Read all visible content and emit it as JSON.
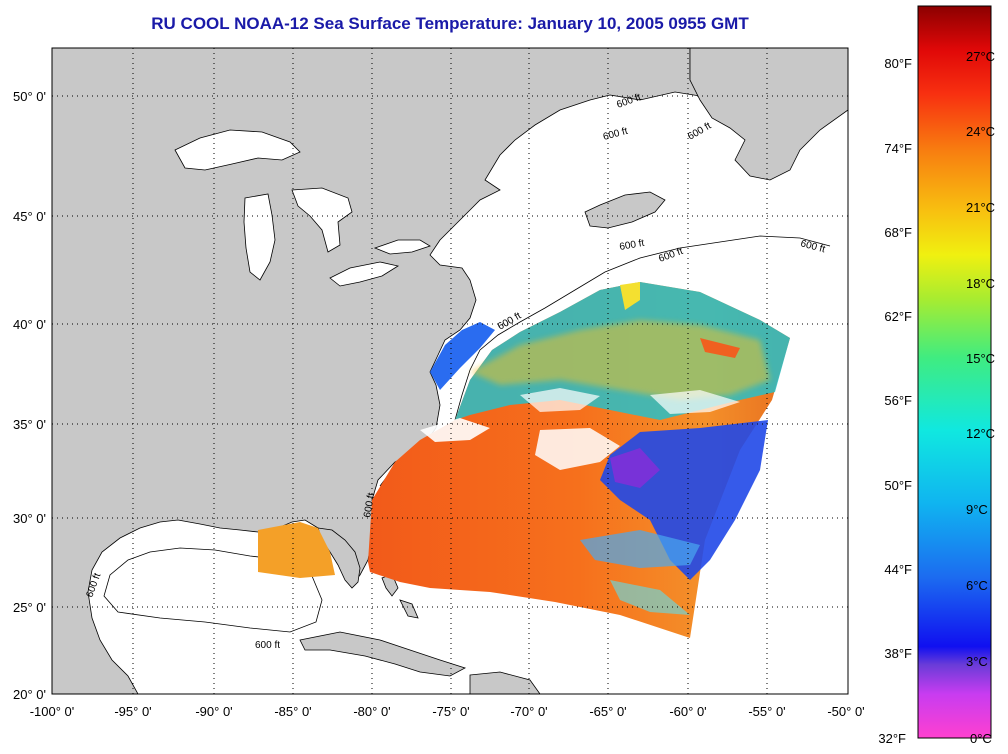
{
  "title": "RU COOL  NOAA-12  Sea Surface Temperature:  January 10, 2005 0955 GMT",
  "map": {
    "lon_ticks": [
      "-100° 0'",
      "-95° 0'",
      "-90° 0'",
      "-85° 0'",
      "-80° 0'",
      "-75° 0'",
      "-70° 0'",
      "-65° 0'",
      "-60° 0'",
      "-55° 0'",
      "-50° 0'"
    ],
    "lat_ticks": [
      "50° 0'",
      "45° 0'",
      "40° 0'",
      "35° 0'",
      "30° 0'",
      "25° 0'",
      "20° 0'"
    ],
    "lon_range": [
      -100,
      -50
    ],
    "lat_range": [
      20,
      52.3
    ],
    "contour_label": "600 ft",
    "land_color": "#c8c8c8",
    "water_color": "#ffffff",
    "grid": "dotted"
  },
  "colorbar": {
    "celsius_labels": [
      "27°C",
      "24°C",
      "21°C",
      "18°C",
      "15°C",
      "12°C",
      "9°C",
      "6°C",
      "3°C",
      "0°C"
    ],
    "fahrenheit_labels": [
      "80°F",
      "74°F",
      "68°F",
      "62°F",
      "56°F",
      "50°F",
      "44°F",
      "38°F",
      "32°F"
    ],
    "range_c": [
      0,
      29
    ]
  }
}
